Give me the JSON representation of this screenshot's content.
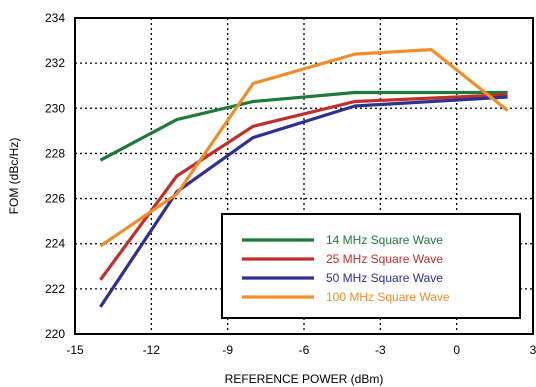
{
  "chart_data": {
    "type": "line",
    "xlabel": "REFERENCE POWER (dBm)",
    "ylabel": "FOM (dBc/Hz)",
    "xlim": [
      -15,
      3
    ],
    "ylim": [
      220,
      234
    ],
    "xticks": [
      -15,
      -12,
      -9,
      -6,
      -3,
      0,
      3
    ],
    "yticks": [
      220,
      222,
      224,
      226,
      228,
      230,
      232,
      234
    ],
    "xtick_labels": [
      "-15",
      "-12",
      "-9",
      "-6",
      "-3",
      "0",
      "3"
    ],
    "ytick_labels": [
      "220",
      "222",
      "224",
      "226",
      "228",
      "230",
      "232",
      "234"
    ],
    "grid": "dotted",
    "legend_position": "bottom-right",
    "series": [
      {
        "name": "14 MHz Square Wave",
        "color": "#1f7a3a",
        "x": [
          -14,
          -11,
          -8,
          -4,
          2
        ],
        "y": [
          227.7,
          229.5,
          230.3,
          230.7,
          230.7
        ]
      },
      {
        "name": "25 MHz Square Wave",
        "color": "#c0302b",
        "x": [
          -14,
          -11,
          -8,
          -4,
          2
        ],
        "y": [
          222.4,
          227.0,
          229.2,
          230.3,
          230.6
        ]
      },
      {
        "name": "50 MHz Square Wave",
        "color": "#2e3192",
        "x": [
          -14,
          -11,
          -8,
          -4,
          2
        ],
        "y": [
          221.2,
          226.3,
          228.7,
          230.1,
          230.5
        ]
      },
      {
        "name": "100 MHz Square Wave",
        "color": "#f28c28",
        "x": [
          -14,
          -11,
          -8,
          -4,
          -1,
          2
        ],
        "y": [
          223.9,
          226.2,
          231.1,
          232.4,
          232.6,
          229.9
        ]
      }
    ]
  }
}
